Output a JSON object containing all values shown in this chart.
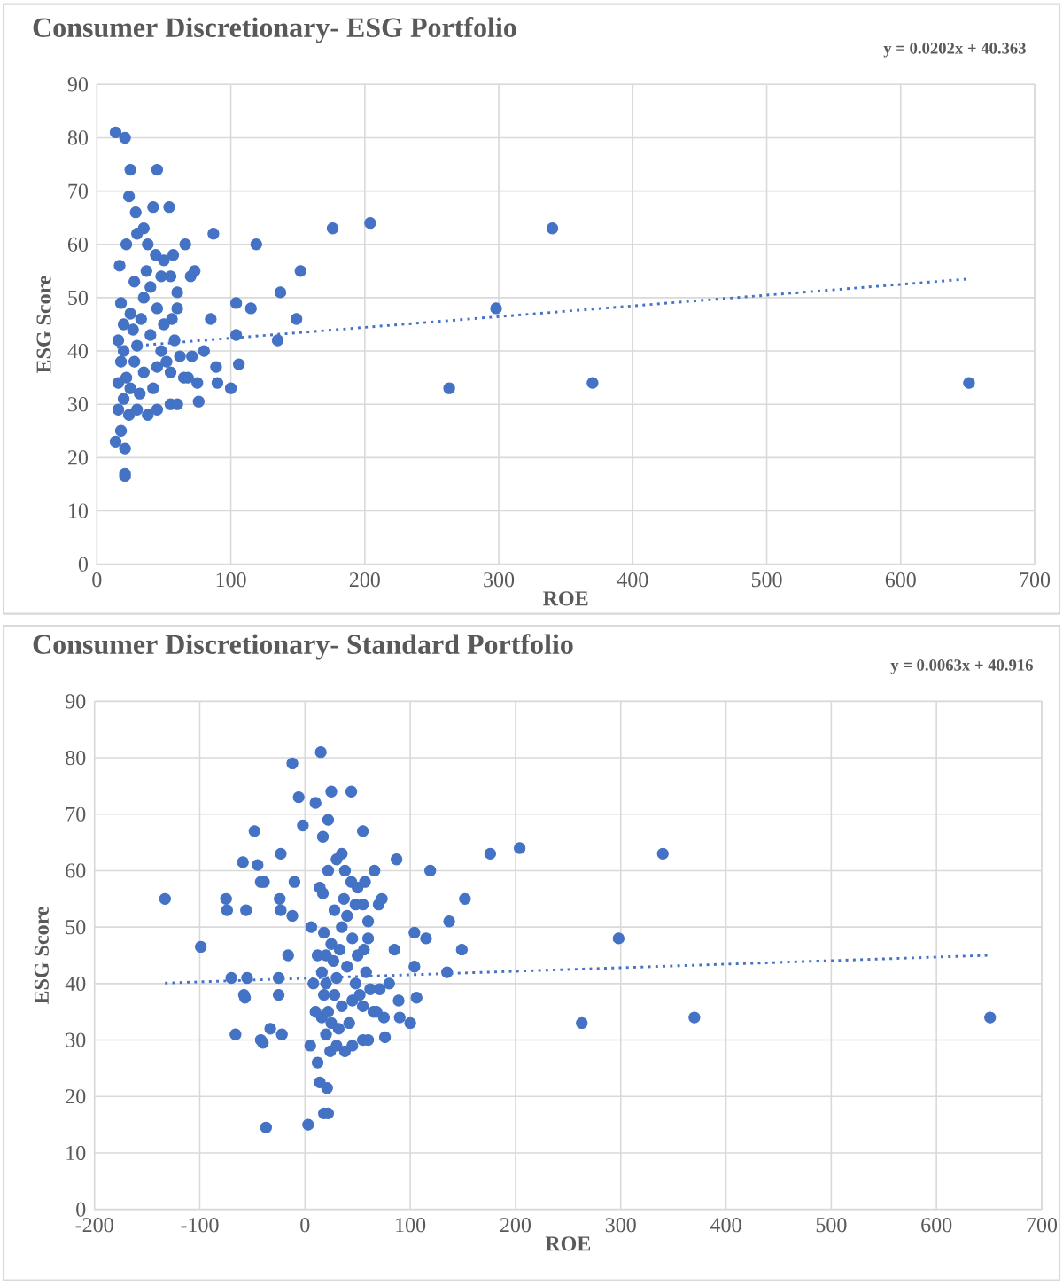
{
  "chart_data": [
    {
      "type": "scatter",
      "title": "Consumer Discretionary- ESG Portfolio",
      "xlabel": "ROE",
      "ylabel": "ESG Score",
      "annotations": [
        "y = 0.0202x + 40.363"
      ],
      "xlim": [
        0,
        700
      ],
      "ylim": [
        0,
        90
      ],
      "xticks": [
        0,
        100,
        200,
        300,
        400,
        500,
        600,
        700
      ],
      "yticks": [
        0,
        10,
        20,
        30,
        40,
        50,
        60,
        70,
        80,
        90
      ],
      "grid": true,
      "series": [
        {
          "type": "scatter",
          "marker": "circle",
          "color": "#4472c4",
          "x": [
            14,
            21,
            25,
            45,
            24,
            29,
            42,
            54,
            66,
            87,
            119,
            176,
            204,
            152,
            137,
            104,
            115,
            149,
            85,
            104,
            135,
            80,
            71,
            89,
            106,
            90,
            100,
            76,
            263,
            298,
            340,
            370,
            651,
            14,
            21,
            21,
            21,
            18,
            16,
            70,
            73,
            57,
            55,
            60,
            48,
            35,
            22,
            17,
            30,
            38,
            44,
            50,
            60,
            56,
            40,
            18,
            20,
            16,
            18,
            16,
            20,
            24,
            30,
            38,
            45,
            55,
            60,
            25,
            35,
            45,
            55,
            65,
            75,
            30,
            40,
            50,
            25,
            35,
            28,
            22,
            32,
            42,
            52,
            62,
            48,
            20,
            27,
            33,
            37,
            28,
            58,
            68,
            45
          ],
          "values": [
            81,
            80,
            74,
            74,
            69,
            66,
            67,
            67,
            60,
            62,
            60,
            63,
            64,
            55,
            51,
            49,
            48,
            46,
            46,
            43,
            42,
            40,
            39,
            37,
            37.5,
            34,
            33,
            30.5,
            33,
            48,
            63,
            34,
            34,
            23,
            21.7,
            17,
            16.5,
            25,
            29,
            54,
            55,
            58,
            54,
            51,
            54,
            63,
            60,
            56,
            62,
            60,
            58,
            57,
            48,
            46,
            52,
            49,
            45,
            42,
            38,
            34,
            31,
            28,
            29,
            28,
            29,
            30,
            30,
            33,
            36,
            37,
            36,
            35,
            34,
            41,
            43,
            45,
            47,
            50,
            53,
            35,
            32,
            33,
            38,
            39,
            40,
            40,
            44,
            46,
            55,
            38,
            42,
            35,
            48
          ]
        },
        {
          "type": "line",
          "color": "#4472c4",
          "line_style": "dotted",
          "marker": "none",
          "x": [
            15,
            650
          ],
          "values": [
            40.7,
            53.5
          ]
        }
      ]
    },
    {
      "type": "scatter",
      "title": "Consumer Discretionary- Standard Portfolio",
      "xlabel": "ROE",
      "ylabel": "ESG Score",
      "annotations": [
        "y = 0.0063x + 40.916"
      ],
      "xlim": [
        -200,
        700
      ],
      "ylim": [
        0,
        90
      ],
      "xticks": [
        -200,
        -100,
        0,
        100,
        200,
        300,
        400,
        500,
        600,
        700
      ],
      "yticks": [
        0,
        10,
        20,
        30,
        40,
        50,
        60,
        70,
        80,
        90
      ],
      "grid": true,
      "series": [
        {
          "marker": "circle",
          "color": "#4472c4",
          "x": [
            -133,
            -99,
            -75,
            -74,
            -70,
            -66,
            -59,
            -58,
            -57,
            -56,
            -55,
            -48,
            -45,
            -42,
            -39,
            -42,
            -40,
            -37,
            -33,
            -25,
            -25,
            -24,
            -23,
            -23,
            -22,
            -16,
            -12,
            -12,
            -10,
            -6,
            -2,
            3,
            10,
            15,
            17,
            14,
            18,
            22,
            21,
            25,
            22,
            12,
            5,
            44,
            55,
            66,
            87,
            119,
            176,
            204,
            152,
            137,
            104,
            115,
            149,
            85,
            104,
            135,
            80,
            71,
            89,
            106,
            90,
            100,
            76,
            263,
            298,
            340,
            370,
            651,
            70,
            73,
            57,
            55,
            60,
            48,
            35,
            22,
            17,
            30,
            38,
            44,
            50,
            60,
            56,
            40,
            18,
            20,
            16,
            18,
            16,
            20,
            24,
            30,
            38,
            45,
            55,
            60,
            25,
            35,
            45,
            55,
            65,
            75,
            30,
            40,
            50,
            25,
            35,
            28,
            22,
            32,
            42,
            52,
            62,
            48,
            20,
            27,
            33,
            37,
            28,
            58,
            68,
            45,
            8,
            12,
            6,
            10,
            14
          ],
          "values": [
            55,
            46.5,
            55,
            53,
            41,
            31,
            61.5,
            38,
            37.5,
            53,
            41,
            67,
            61,
            58,
            58,
            30,
            29.5,
            14.5,
            32,
            41,
            38,
            55,
            63,
            53,
            31,
            45,
            52,
            79,
            58,
            73,
            68,
            15,
            72,
            81,
            66,
            22.5,
            17,
            17,
            21.5,
            74,
            69,
            26,
            29,
            74,
            67,
            60,
            62,
            60,
            63,
            64,
            55,
            51,
            49,
            48,
            46,
            46,
            43,
            42,
            40,
            39,
            37,
            37.5,
            34,
            33,
            30.5,
            33,
            48,
            63,
            34,
            34,
            54,
            55,
            58,
            54,
            51,
            54,
            63,
            60,
            56,
            62,
            60,
            58,
            57,
            48,
            46,
            52,
            49,
            45,
            42,
            38,
            34,
            31,
            28,
            29,
            28,
            29,
            30,
            30,
            33,
            36,
            37,
            36,
            35,
            34,
            41,
            43,
            45,
            47,
            50,
            53,
            35,
            32,
            33,
            38,
            39,
            40,
            40,
            44,
            46,
            55,
            38,
            42,
            35,
            48,
            40,
            45,
            50,
            35,
            57
          ]
        },
        {
          "type": "line",
          "color": "#4472c4",
          "line_style": "dotted",
          "marker": "none",
          "x": [
            -133,
            650
          ],
          "values": [
            40.1,
            45.0
          ]
        }
      ]
    }
  ]
}
